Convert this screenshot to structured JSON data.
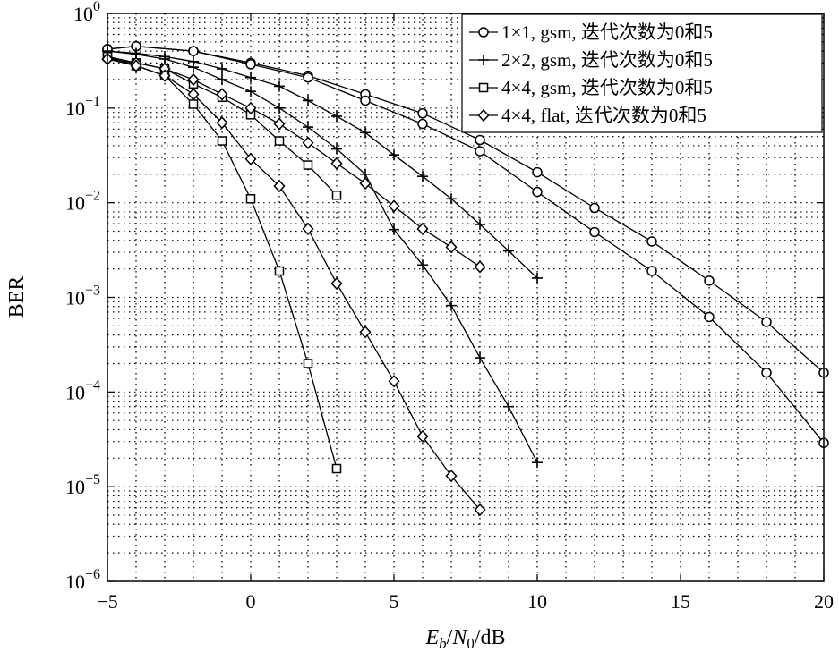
{
  "chart_data": {
    "type": "line",
    "xlabel": "E_b / N_0 /dB",
    "xlabel_parts": {
      "e": "E",
      "b": "b",
      "n": "N",
      "zero": "0",
      "unit": "/dB",
      "slash": "/"
    },
    "ylabel": "BER",
    "xlim": [
      -5,
      20
    ],
    "ylim": [
      1e-06,
      1
    ],
    "yscale": "log",
    "grid": true,
    "legend_position": "top-right",
    "xticks": [
      -5,
      0,
      5,
      10,
      15,
      20
    ],
    "xtick_labels": [
      "−5",
      "0",
      "5",
      "10",
      "15",
      "20"
    ],
    "yticks": [
      {
        "value": 1,
        "base": "10",
        "exp": "0"
      },
      {
        "value": 0.1,
        "base": "10",
        "exp": "−1"
      },
      {
        "value": 0.01,
        "base": "10",
        "exp": "−2"
      },
      {
        "value": 0.001,
        "base": "10",
        "exp": "−3"
      },
      {
        "value": 0.0001,
        "base": "10",
        "exp": "−4"
      },
      {
        "value": 1e-05,
        "base": "10",
        "exp": "−5"
      },
      {
        "value": 1e-06,
        "base": "10",
        "exp": "−6"
      }
    ],
    "legend": [
      {
        "label": "1×1, gsm, 迭代次数为0和5",
        "marker": "circle"
      },
      {
        "label": "2×2, gsm, 迭代次数为0和5",
        "marker": "plus"
      },
      {
        "label": "4×4, gsm, 迭代次数为0和5",
        "marker": "square"
      },
      {
        "label": "4×4, flat, 迭代次数为0和5",
        "marker": "diamond"
      }
    ],
    "series": [
      {
        "marker": "circle",
        "x": [
          -5,
          -4,
          -2,
          0,
          2,
          4,
          6,
          8,
          10,
          12,
          14,
          16,
          18,
          20
        ],
        "y": [
          0.42,
          0.45,
          0.4,
          0.3,
          0.22,
          0.14,
          0.088,
          0.046,
          0.021,
          0.0088,
          0.0039,
          0.0015,
          0.00055,
          0.00016
        ]
      },
      {
        "marker": "circle",
        "x": [
          -5,
          -4,
          -2,
          0,
          2,
          4,
          6,
          8,
          10,
          12,
          14,
          16,
          18,
          20
        ],
        "y": [
          0.42,
          0.45,
          0.4,
          0.29,
          0.21,
          0.12,
          0.068,
          0.035,
          0.013,
          0.0049,
          0.0019,
          0.00062,
          0.00016,
          2.9e-05
        ]
      },
      {
        "marker": "plus",
        "x": [
          -5,
          -4,
          -3,
          -2,
          -1,
          0,
          1,
          2,
          3,
          4,
          5,
          6,
          7,
          8,
          9,
          10
        ],
        "y": [
          0.4,
          0.38,
          0.35,
          0.31,
          0.26,
          0.21,
          0.17,
          0.12,
          0.082,
          0.055,
          0.032,
          0.019,
          0.011,
          0.0059,
          0.0031,
          0.0016
        ]
      },
      {
        "marker": "plus",
        "x": [
          -5,
          -4,
          -3,
          -2,
          -1,
          0,
          1,
          2,
          3,
          4,
          5,
          6,
          7,
          8,
          9,
          10
        ],
        "y": [
          0.4,
          0.37,
          0.33,
          0.27,
          0.2,
          0.15,
          0.1,
          0.063,
          0.037,
          0.02,
          0.0052,
          0.0022,
          0.00082,
          0.00023,
          7e-05,
          1.8e-05
        ]
      },
      {
        "marker": "square",
        "x": [
          -5,
          -4,
          -3,
          -2,
          -1,
          0,
          1,
          2,
          3
        ],
        "y": [
          0.35,
          0.3,
          0.26,
          0.18,
          0.13,
          0.085,
          0.045,
          0.025,
          0.012
        ]
      },
      {
        "marker": "square",
        "x": [
          -5,
          -4,
          -3,
          -2,
          -1,
          0,
          1,
          2,
          3
        ],
        "y": [
          0.35,
          0.28,
          0.22,
          0.11,
          0.045,
          0.011,
          0.0019,
          0.0002,
          1.55e-05
        ]
      },
      {
        "marker": "diamond",
        "x": [
          -5,
          -4,
          -3,
          -2,
          -1,
          0,
          1,
          2,
          3,
          4,
          5,
          6,
          7,
          8
        ],
        "y": [
          0.33,
          0.3,
          0.26,
          0.2,
          0.14,
          0.1,
          0.068,
          0.043,
          0.026,
          0.016,
          0.0092,
          0.0053,
          0.0034,
          0.0021
        ]
      },
      {
        "marker": "diamond",
        "x": [
          -5,
          -4,
          -3,
          -2,
          -1,
          0,
          1,
          2,
          3,
          4,
          5,
          6,
          7,
          8
        ],
        "y": [
          0.33,
          0.28,
          0.22,
          0.14,
          0.07,
          0.029,
          0.015,
          0.0053,
          0.0014,
          0.00043,
          0.00013,
          3.4e-05,
          1.3e-05,
          5.7e-06
        ]
      }
    ]
  }
}
